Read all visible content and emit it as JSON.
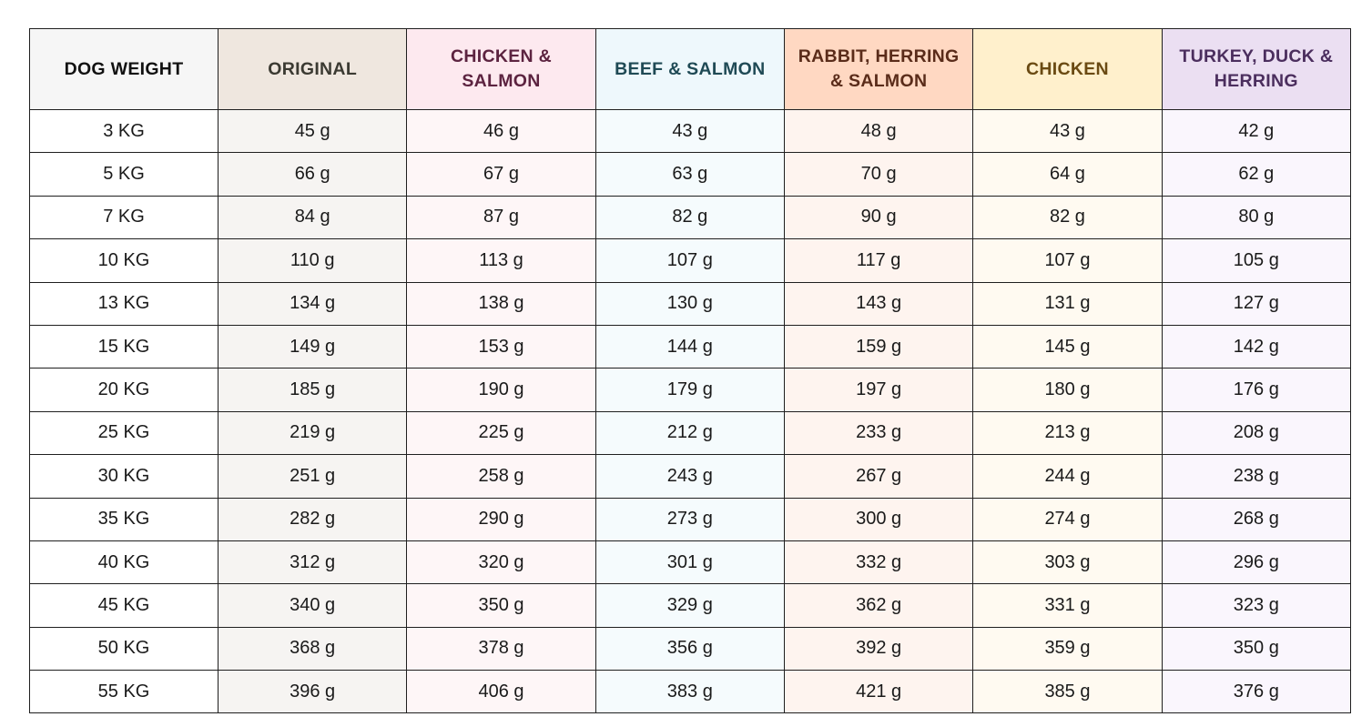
{
  "table": {
    "columns": [
      {
        "label": "DOG WEIGHT",
        "header_bg": "#f6f6f6",
        "header_color": "#111111",
        "cell_bg": "#ffffff"
      },
      {
        "label": "ORIGINAL",
        "header_bg": "#efe7df",
        "header_color": "#3b3a32",
        "cell_bg": "#f6f4f2"
      },
      {
        "label": "CHICKEN & SALMON",
        "header_bg": "#fde9ef",
        "header_color": "#5c2340",
        "cell_bg": "#fef6f7"
      },
      {
        "label": "BEEF & SALMON",
        "header_bg": "#eef8fc",
        "header_color": "#1f4a55",
        "cell_bg": "#f5fbfd"
      },
      {
        "label": "RABBIT, HERRING & SALMON",
        "header_bg": "#ffd8c2",
        "header_color": "#5a2c1a",
        "cell_bg": "#fef4ef"
      },
      {
        "label": "CHICKEN",
        "header_bg": "#fff0cc",
        "header_color": "#6a4a12",
        "cell_bg": "#fffaf1"
      },
      {
        "label": "TURKEY, DUCK & HERRING",
        "header_bg": "#ebdff2",
        "header_color": "#4b2e5e",
        "cell_bg": "#faf6fd"
      }
    ],
    "rows": [
      [
        "3 KG",
        "45 g",
        "46 g",
        "43 g",
        "48 g",
        "43 g",
        "42 g"
      ],
      [
        "5 KG",
        "66 g",
        "67 g",
        "63 g",
        "70 g",
        "64 g",
        "62 g"
      ],
      [
        "7 KG",
        "84 g",
        "87 g",
        "82 g",
        "90 g",
        "82 g",
        "80 g"
      ],
      [
        "10 KG",
        "110 g",
        "113 g",
        "107 g",
        "117 g",
        "107 g",
        "105 g"
      ],
      [
        "13 KG",
        "134 g",
        "138 g",
        "130 g",
        "143 g",
        "131 g",
        "127 g"
      ],
      [
        "15 KG",
        "149 g",
        "153 g",
        "144 g",
        "159 g",
        "145 g",
        "142 g"
      ],
      [
        "20 KG",
        "185 g",
        "190 g",
        "179 g",
        "197 g",
        "180 g",
        "176 g"
      ],
      [
        "25 KG",
        "219 g",
        "225 g",
        "212 g",
        "233 g",
        "213 g",
        "208 g"
      ],
      [
        "30 KG",
        "251 g",
        "258 g",
        "243 g",
        "267 g",
        "244 g",
        "238 g"
      ],
      [
        "35 KG",
        "282 g",
        "290 g",
        "273 g",
        "300 g",
        "274 g",
        "268 g"
      ],
      [
        "40 KG",
        "312 g",
        "320 g",
        "301 g",
        "332 g",
        "303 g",
        "296 g"
      ],
      [
        "45 KG",
        "340 g",
        "350 g",
        "329 g",
        "362 g",
        "331 g",
        "323 g"
      ],
      [
        "50 KG",
        "368 g",
        "378 g",
        "356 g",
        "392 g",
        "359 g",
        "350 g"
      ],
      [
        "55 KG",
        "396 g",
        "406 g",
        "383 g",
        "421 g",
        "385 g",
        "376 g"
      ]
    ]
  }
}
